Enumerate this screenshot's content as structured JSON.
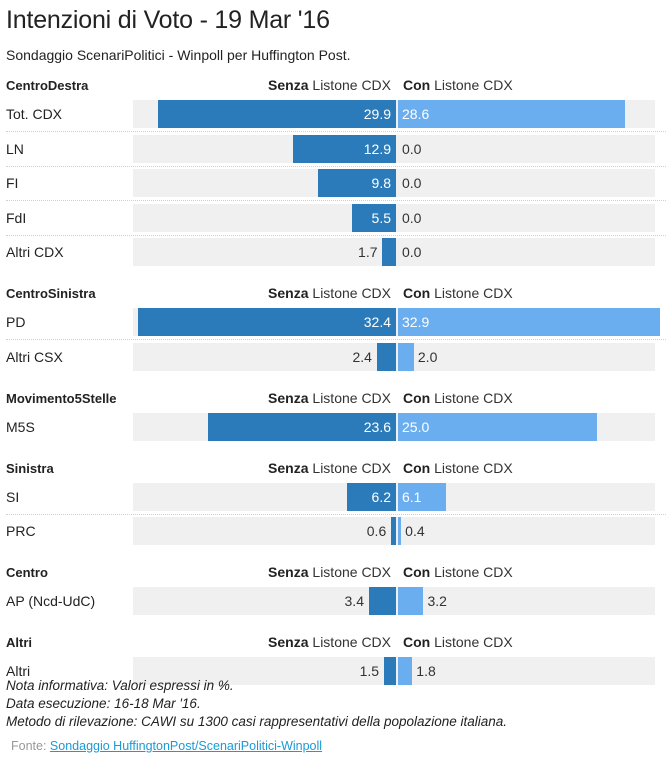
{
  "header": {
    "title": "Intenzioni di Voto - 19 Mar '16",
    "subtitle": "Sondaggio ScenariPolitici - Winpoll per Huffington Post."
  },
  "columns": {
    "left_bold": "Senza",
    "left_rest": " Listone CDX",
    "right_bold": "Con",
    "right_rest": " Listone CDX"
  },
  "colors": {
    "senza": "#2b7bba",
    "con": "#6aaef0",
    "track": "#f0f0f0"
  },
  "chart_data": {
    "type": "bar",
    "title": "Intenzioni di Voto - 19 Mar '16",
    "subtitle": "Sondaggio ScenariPolitici - Winpoll per Huffington Post.",
    "orientation": "horizontal-diverging",
    "unit": "%",
    "series": [
      {
        "name": "Senza Listone CDX",
        "color": "#2b7bba"
      },
      {
        "name": "Con Listone CDX",
        "color": "#6aaef0"
      }
    ],
    "xlim": [
      0,
      32.9
    ],
    "groups": [
      {
        "name": "CentroDestra",
        "rows": [
          {
            "label": "Tot. CDX",
            "senza": 29.9,
            "con": 28.6
          },
          {
            "label": "LN",
            "senza": 12.9,
            "con": 0.0
          },
          {
            "label": "FI",
            "senza": 9.8,
            "con": 0.0
          },
          {
            "label": "FdI",
            "senza": 5.5,
            "con": 0.0
          },
          {
            "label": "Altri CDX",
            "senza": 1.7,
            "con": 0.0
          }
        ]
      },
      {
        "name": "CentroSinistra",
        "rows": [
          {
            "label": "PD",
            "senza": 32.4,
            "con": 32.9
          },
          {
            "label": "Altri CSX",
            "senza": 2.4,
            "con": 2.0
          }
        ]
      },
      {
        "name": "Movimento5Stelle",
        "rows": [
          {
            "label": "M5S",
            "senza": 23.6,
            "con": 25.0
          }
        ]
      },
      {
        "name": "Sinistra",
        "rows": [
          {
            "label": "SI",
            "senza": 6.2,
            "con": 6.1
          },
          {
            "label": "PRC",
            "senza": 0.6,
            "con": 0.4
          }
        ]
      },
      {
        "name": "Centro",
        "rows": [
          {
            "label": "AP (Ncd-UdC)",
            "senza": 3.4,
            "con": 3.2
          }
        ]
      },
      {
        "name": "Altri",
        "rows": [
          {
            "label": "Altri",
            "senza": 1.5,
            "con": 1.8
          }
        ]
      }
    ]
  },
  "notes": [
    "Nota informativa: Valori espressi in %.",
    "Data esecuzione: 16-18 Mar '16.",
    "Metodo di rilevazione: CAWI su 1300 casi rappresentativi della popolazione italiana."
  ],
  "source": {
    "prefix": "Fonte: ",
    "link_text": "Sondaggio HuffingtonPost/ScenariPolitici-Winpoll"
  }
}
